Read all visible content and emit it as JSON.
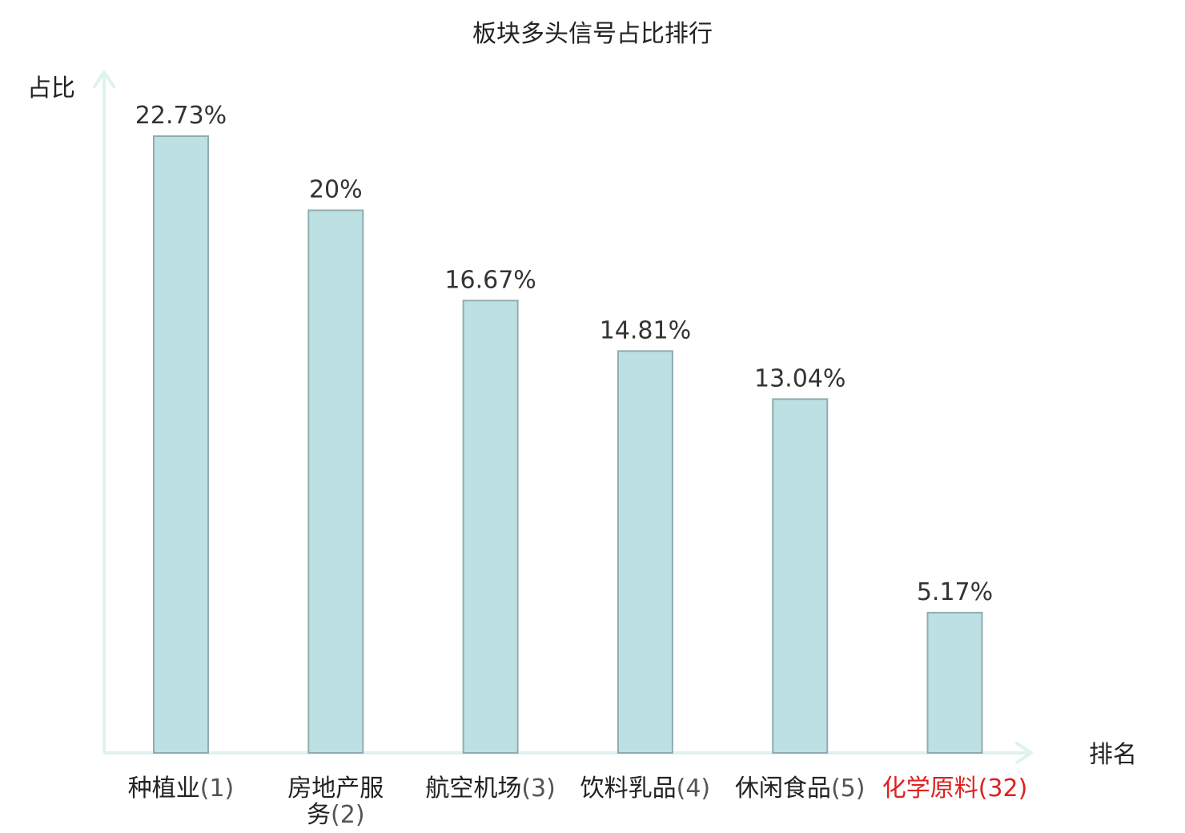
{
  "chart_data": {
    "type": "bar",
    "title": "板块多头信号占比排行",
    "ylabel": "占比",
    "xlabel": "排名",
    "ylim": [
      0,
      25
    ],
    "grid": false,
    "value_suffix": "%",
    "categories": [
      {
        "name_lines": [
          "种植业"
        ],
        "rank": "(1)",
        "highlight": false
      },
      {
        "name_lines": [
          "房地产服",
          "务"
        ],
        "rank": "(2)",
        "highlight": false
      },
      {
        "name_lines": [
          "航空机场"
        ],
        "rank": "(3)",
        "highlight": false
      },
      {
        "name_lines": [
          "饮料乳品"
        ],
        "rank": "(4)",
        "highlight": false
      },
      {
        "name_lines": [
          "休闲食品"
        ],
        "rank": "(5)",
        "highlight": false
      },
      {
        "name_lines": [
          "化学原料"
        ],
        "rank": "(32)",
        "highlight": true
      }
    ],
    "values": [
      22.73,
      20,
      16.67,
      14.81,
      13.04,
      5.17
    ],
    "value_labels": [
      "22.73%",
      "20%",
      "16.67%",
      "14.81%",
      "13.04%",
      "5.17%"
    ],
    "colors": {
      "bar_fill": "#bde0e3",
      "bar_stroke": "#8fadb0",
      "axis": "#dff2ef",
      "highlight_text": "#e02020",
      "text": "#222222"
    }
  }
}
